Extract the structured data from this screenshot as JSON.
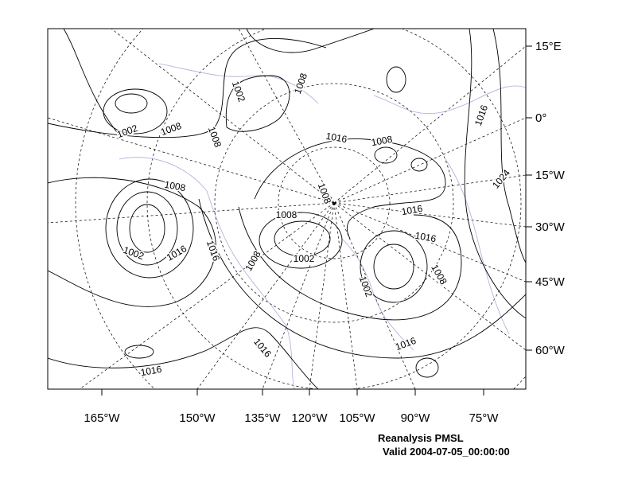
{
  "map": {
    "x_labels": [
      "165°W",
      "150°W",
      "135°W",
      "120°W",
      "105°W",
      "90°W",
      "75°W"
    ],
    "y_labels": [
      "15°E",
      "0°",
      "15°W",
      "30°W",
      "45°W",
      "60°W"
    ],
    "contour_labels": [
      "1002",
      "1008",
      "1002",
      "1008",
      "1008",
      "1016",
      "1008",
      "1016",
      "1008",
      "1024",
      "1008",
      "1008",
      "1016",
      "1016",
      "1002",
      "1016",
      "1016",
      "1008",
      "1002",
      "1008",
      "1002",
      "1016",
      "1016",
      "1016"
    ],
    "caption": [
      "Reanalysis PMSL",
      "Valid 2004-07-05_00:00:00"
    ]
  }
}
